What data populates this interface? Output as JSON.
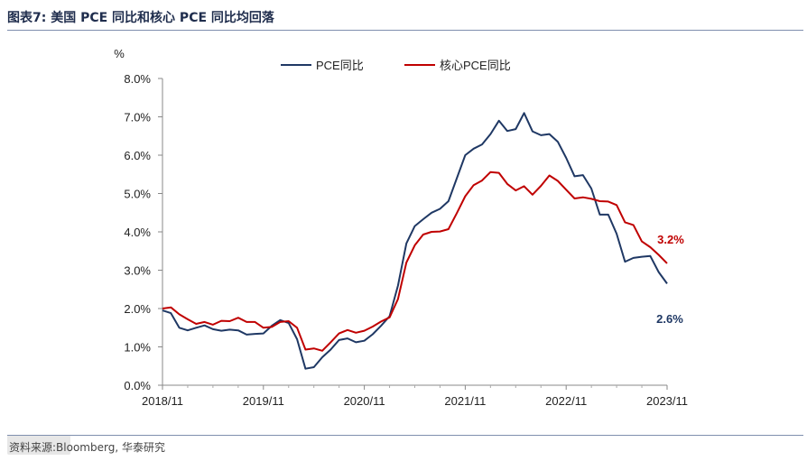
{
  "header": {
    "title": "图表7:  美国 PCE 同比和核心 PCE 同比均回落"
  },
  "footer": {
    "source": "资料来源:Bloomberg, 华泰研究"
  },
  "colors": {
    "pce": "#1f3864",
    "core": "#c00000",
    "title": "#1f2d4d",
    "rule": "#7f8fae"
  },
  "chart_data": {
    "type": "line",
    "title": "",
    "ylabel": "%",
    "xlabel": "",
    "ylim": [
      0,
      8
    ],
    "yticks": [
      "0.0%",
      "1.0%",
      "2.0%",
      "3.0%",
      "4.0%",
      "5.0%",
      "6.0%",
      "7.0%",
      "8.0%"
    ],
    "xticks": [
      "2018/11",
      "2019/11",
      "2020/11",
      "2021/11",
      "2022/11",
      "2023/11"
    ],
    "legend": "top-center",
    "grid": false,
    "x": [
      "2018-11",
      "2018-12",
      "2019-01",
      "2019-02",
      "2019-03",
      "2019-04",
      "2019-05",
      "2019-06",
      "2019-07",
      "2019-08",
      "2019-09",
      "2019-10",
      "2019-11",
      "2019-12",
      "2020-01",
      "2020-02",
      "2020-03",
      "2020-04",
      "2020-05",
      "2020-06",
      "2020-07",
      "2020-08",
      "2020-09",
      "2020-10",
      "2020-11",
      "2020-12",
      "2021-01",
      "2021-02",
      "2021-03",
      "2021-04",
      "2021-05",
      "2021-06",
      "2021-07",
      "2021-08",
      "2021-09",
      "2021-10",
      "2021-11",
      "2021-12",
      "2022-01",
      "2022-02",
      "2022-03",
      "2022-04",
      "2022-05",
      "2022-06",
      "2022-07",
      "2022-08",
      "2022-09",
      "2022-10",
      "2022-11",
      "2022-12",
      "2023-01",
      "2023-02",
      "2023-03",
      "2023-04",
      "2023-05",
      "2023-06",
      "2023-07",
      "2023-08",
      "2023-09",
      "2023-10",
      "2023-11"
    ],
    "series": [
      {
        "name": "PCE同比",
        "values": [
          1.95,
          1.88,
          1.5,
          1.43,
          1.5,
          1.56,
          1.46,
          1.42,
          1.45,
          1.43,
          1.32,
          1.34,
          1.35,
          1.55,
          1.7,
          1.62,
          1.2,
          0.43,
          0.47,
          0.73,
          0.93,
          1.18,
          1.22,
          1.12,
          1.16,
          1.33,
          1.55,
          1.8,
          2.6,
          3.7,
          4.15,
          4.33,
          4.5,
          4.6,
          4.8,
          5.4,
          6.0,
          6.17,
          6.28,
          6.55,
          6.9,
          6.63,
          6.68,
          7.1,
          6.62,
          6.52,
          6.55,
          6.35,
          5.93,
          5.45,
          5.48,
          5.13,
          4.45,
          4.45,
          3.95,
          3.22,
          3.32,
          3.35,
          3.37,
          2.95,
          2.65
        ]
      },
      {
        "name": "核心PCE同比",
        "values": [
          2.0,
          2.03,
          1.85,
          1.72,
          1.6,
          1.65,
          1.58,
          1.68,
          1.67,
          1.76,
          1.65,
          1.65,
          1.5,
          1.52,
          1.65,
          1.67,
          1.5,
          0.93,
          0.96,
          0.9,
          1.12,
          1.35,
          1.44,
          1.37,
          1.42,
          1.53,
          1.66,
          1.77,
          2.25,
          3.2,
          3.65,
          3.93,
          4.0,
          4.01,
          4.07,
          4.49,
          4.93,
          5.22,
          5.34,
          5.56,
          5.54,
          5.25,
          5.08,
          5.19,
          4.97,
          5.2,
          5.47,
          5.33,
          5.1,
          4.87,
          4.9,
          4.86,
          4.8,
          4.79,
          4.7,
          4.25,
          4.18,
          3.75,
          3.6,
          3.4,
          3.18
        ]
      }
    ],
    "annotations": [
      {
        "text": "3.2%",
        "series": "核心PCE同比"
      },
      {
        "text": "2.6%",
        "series": "PCE同比"
      }
    ]
  }
}
